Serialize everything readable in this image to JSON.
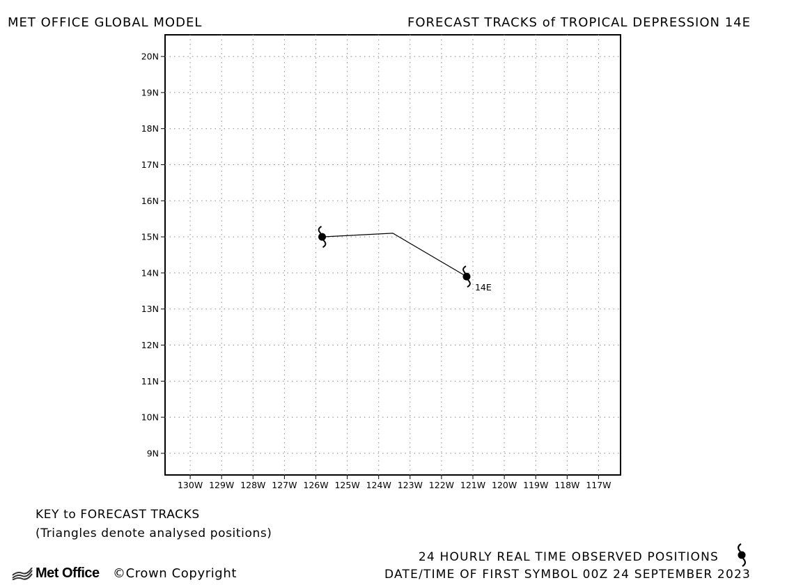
{
  "header": {
    "left_title": "MET OFFICE GLOBAL MODEL",
    "right_title": "FORECAST TRACKS of TROPICAL DEPRESSION 14E"
  },
  "map": {
    "type": "forecast-track",
    "lat_ticks": [
      "20N",
      "19N",
      "18N",
      "17N",
      "16N",
      "15N",
      "14N",
      "13N",
      "12N",
      "11N",
      "10N",
      "9N"
    ],
    "lon_ticks": [
      "130W",
      "129W",
      "128W",
      "127W",
      "126W",
      "125W",
      "124W",
      "123W",
      "122W",
      "121W",
      "120W",
      "119W",
      "118W",
      "117W"
    ],
    "lat_values": [
      20,
      19,
      18,
      17,
      16,
      15,
      14,
      13,
      12,
      11,
      10,
      9
    ],
    "lon_values": [
      -130,
      -129,
      -128,
      -127,
      -126,
      -125,
      -124,
      -123,
      -122,
      -121,
      -120,
      -119,
      -118,
      -117
    ],
    "x_range_deg": [
      -130.8,
      -116.3
    ],
    "y_range_deg": [
      8.4,
      20.6
    ],
    "grid": true,
    "track": [
      {
        "lon": -121.2,
        "lat": 13.9,
        "symbol": true
      },
      {
        "lon": -123.55,
        "lat": 15.1,
        "symbol": false
      },
      {
        "lon": -125.8,
        "lat": 15.0,
        "symbol": true
      }
    ],
    "storm_label": "14E",
    "icon": "tropical-cyclone-icon"
  },
  "key": {
    "title": "KEY to FORECAST TRACKS",
    "subtitle": "(Triangles denote analysed positions)"
  },
  "footer": {
    "observed_text": "24 HOURLY REAL TIME OBSERVED POSITIONS",
    "date_text": "DATE/TIME OF FIRST SYMBOL 00Z 24 SEPTEMBER 2023",
    "logo_text": "Met Office",
    "copyright_text": "©Crown Copyright"
  }
}
